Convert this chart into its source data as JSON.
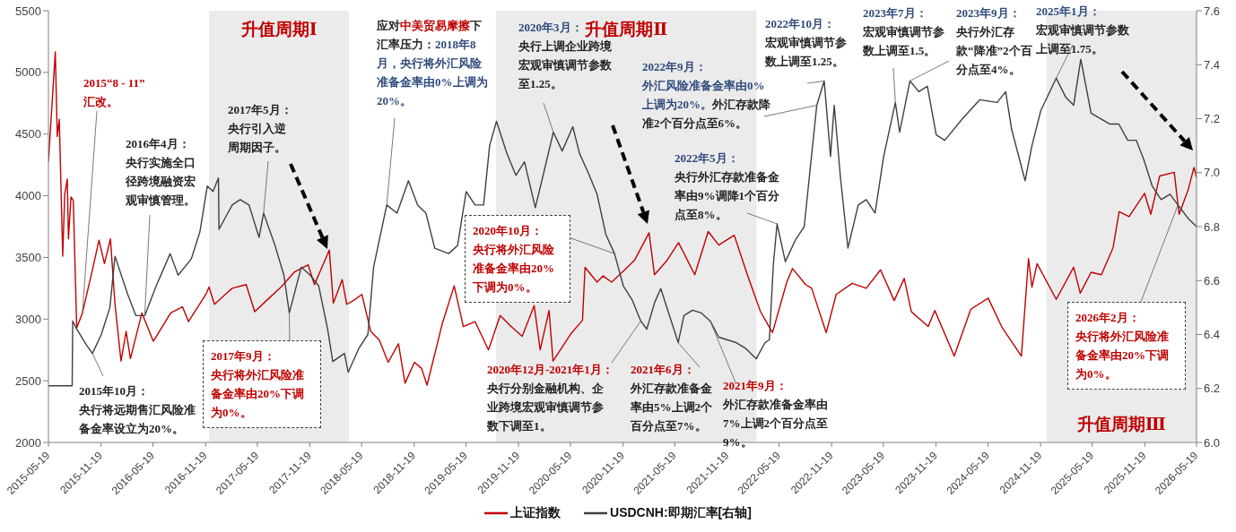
{
  "chart_data": {
    "type": "line",
    "xlim": [
      "2015-05-19",
      "2026-05-19"
    ],
    "xticks": [
      "2015-05-19",
      "2015-11-19",
      "2016-05-19",
      "2016-11-19",
      "2017-05-19",
      "2017-11-19",
      "2018-05-19",
      "2018-11-19",
      "2019-05-19",
      "2019-11-19",
      "2020-05-19",
      "2020-11-19",
      "2021-05-19",
      "2021-11-19",
      "2022-05-19",
      "2022-11-19",
      "2023-05-19",
      "2023-11-19",
      "2024-05-19",
      "2024-11-19",
      "2025-05-19",
      "2025-11-19",
      "2026-05-19"
    ],
    "ylim": [
      2000,
      5500
    ],
    "yticks": [
      2000,
      2500,
      3000,
      3500,
      4000,
      4500,
      5000,
      5500
    ],
    "y2lim": [
      6.0,
      7.6
    ],
    "y2ticks": [
      {
        "value": 6.0,
        "label": "6.0"
      },
      {
        "value": 6.2,
        "label": "6.2"
      },
      {
        "value": 6.4,
        "label": "6.4"
      },
      {
        "value": 6.6,
        "label": "6.6"
      },
      {
        "value": 6.8,
        "label": "6.8"
      },
      {
        "value": 7.0,
        "label": "7.0"
      },
      {
        "value": 7.2,
        "label": "7.2"
      },
      {
        "value": 7.4,
        "label": "7.4"
      },
      {
        "value": 7.6,
        "label": "7.6"
      }
    ],
    "legend": "bottom",
    "bands": [
      {
        "axis": "x",
        "from": "2016-12-01",
        "to": "2018-04-05",
        "label": "升值周期Ⅰ",
        "color": "#ebebeb"
      },
      {
        "axis": "x",
        "from": "2019-09-01",
        "to": "2022-03-01",
        "label": "升值周期Ⅱ",
        "color": "#ebebeb"
      },
      {
        "axis": "x",
        "from": "2024-12-10",
        "to": "2026-05-19",
        "label": "升值周期Ⅲ",
        "color": "#ebebeb"
      }
    ],
    "series": [
      {
        "name": "上证指数",
        "color": "#c00000",
        "x": [
          "2015-05-19",
          "2015-06-12",
          "2015-06-19",
          "2015-06-26",
          "2015-07-08",
          "2015-07-15",
          "2015-07-24",
          "2015-07-28",
          "2015-08-06",
          "2015-08-14",
          "2015-08-26",
          "2015-09-15",
          "2015-10-20",
          "2015-11-12",
          "2015-12-01",
          "2015-12-22",
          "2016-01-07",
          "2016-01-28",
          "2016-02-15",
          "2016-03-01",
          "2016-04-10",
          "2016-05-20",
          "2016-07-20",
          "2016-08-30",
          "2016-09-20",
          "2016-11-20",
          "2016-12-01",
          "2016-12-20",
          "2017-02-20",
          "2017-04-10",
          "2017-05-10",
          "2017-06-20",
          "2017-08-10",
          "2017-09-25",
          "2017-11-13",
          "2017-12-05",
          "2018-01-26",
          "2018-02-09",
          "2018-03-12",
          "2018-03-28",
          "2018-04-20",
          "2018-05-20",
          "2018-06-20",
          "2018-07-20",
          "2018-08-20",
          "2018-09-25",
          "2018-10-18",
          "2018-11-20",
          "2018-12-15",
          "2019-01-03",
          "2019-02-25",
          "2019-04-08",
          "2019-05-10",
          "2019-06-20",
          "2019-08-06",
          "2019-09-16",
          "2019-10-20",
          "2019-12-02",
          "2020-01-13",
          "2020-02-03",
          "2020-03-05",
          "2020-03-19",
          "2020-05-20",
          "2020-06-30",
          "2020-07-09",
          "2020-08-20",
          "2020-09-10",
          "2020-10-10",
          "2020-11-25",
          "2020-12-30",
          "2021-02-18",
          "2021-03-09",
          "2021-04-20",
          "2021-06-01",
          "2021-07-28",
          "2021-09-13",
          "2021-10-20",
          "2021-12-13",
          "2022-01-28",
          "2022-03-15",
          "2022-04-26",
          "2022-06-15",
          "2022-07-05",
          "2022-08-20",
          "2022-09-10",
          "2022-10-31",
          "2022-12-05",
          "2023-01-30",
          "2023-03-20",
          "2023-05-09",
          "2023-06-26",
          "2023-07-31",
          "2023-08-25",
          "2023-10-23",
          "2023-11-15",
          "2024-01-22",
          "2024-03-20",
          "2024-05-20",
          "2024-07-08",
          "2024-09-13",
          "2024-10-08",
          "2024-10-20",
          "2024-11-07",
          "2025-01-13",
          "2025-03-15",
          "2025-04-07",
          "2025-05-15",
          "2025-06-20",
          "2025-07-31",
          "2025-08-21",
          "2025-09-25",
          "2025-11-18",
          "2025-12-10",
          "2026-01-10",
          "2026-03-02",
          "2026-03-19",
          "2026-04-20",
          "2026-05-10",
          "2026-05-19"
        ],
        "values": [
          4280,
          5166,
          4480,
          4620,
          3510,
          4010,
          4135,
          3650,
          3990,
          3960,
          2930,
          3050,
          3400,
          3640,
          3450,
          3650,
          3120,
          2660,
          2900,
          2680,
          3050,
          2820,
          3050,
          3100,
          2980,
          3200,
          3260,
          3120,
          3250,
          3280,
          3060,
          3150,
          3260,
          3380,
          3440,
          3280,
          3560,
          3130,
          3320,
          3120,
          3150,
          3200,
          2900,
          2830,
          2650,
          2800,
          2480,
          2650,
          2600,
          2465,
          2960,
          3270,
          2940,
          2980,
          2750,
          3030,
          2950,
          2860,
          3110,
          2750,
          3070,
          2660,
          2880,
          2990,
          3420,
          3300,
          3350,
          3300,
          3400,
          3480,
          3700,
          3360,
          3470,
          3620,
          3360,
          3710,
          3600,
          3680,
          3360,
          3060,
          2890,
          3300,
          3410,
          3280,
          3250,
          2890,
          3200,
          3290,
          3250,
          3400,
          3150,
          3330,
          3060,
          2940,
          3070,
          2700,
          3080,
          3170,
          2930,
          2700,
          3490,
          3260,
          3450,
          3160,
          3420,
          3210,
          3380,
          3360,
          3580,
          3870,
          3830,
          4020,
          3850,
          4160,
          4190,
          3850,
          4050,
          4230,
          4150
        ]
      },
      {
        "name": "USDCNH:即期汇率[右轴]",
        "color": "#404040",
        "axis": "y2",
        "x": [
          "2015-05-19",
          "2015-08-10",
          "2015-08-12",
          "2015-08-26",
          "2015-09-30",
          "2015-10-20",
          "2015-11-20",
          "2015-12-20",
          "2016-01-07",
          "2016-02-20",
          "2016-03-20",
          "2016-04-20",
          "2016-05-30",
          "2016-07-18",
          "2016-08-15",
          "2016-09-30",
          "2016-10-30",
          "2016-11-25",
          "2016-12-15",
          "2017-01-03",
          "2017-01-05",
          "2017-02-20",
          "2017-03-20",
          "2017-04-20",
          "2017-05-25",
          "2017-06-10",
          "2017-07-20",
          "2017-08-20",
          "2017-09-08",
          "2017-10-20",
          "2017-11-20",
          "2017-12-20",
          "2018-01-20",
          "2018-02-07",
          "2018-03-20",
          "2018-04-02",
          "2018-05-10",
          "2018-06-10",
          "2018-06-30",
          "2018-08-15",
          "2018-09-20",
          "2018-10-30",
          "2018-12-01",
          "2018-12-30",
          "2019-01-30",
          "2019-03-20",
          "2019-04-20",
          "2019-05-20",
          "2019-06-20",
          "2019-07-20",
          "2019-08-10",
          "2019-09-03",
          "2019-10-10",
          "2019-11-10",
          "2019-12-10",
          "2020-01-17",
          "2020-02-20",
          "2020-03-20",
          "2020-04-20",
          "2020-05-27",
          "2020-06-20",
          "2020-07-20",
          "2020-08-20",
          "2020-09-20",
          "2020-10-20",
          "2020-11-20",
          "2020-12-20",
          "2021-01-20",
          "2021-02-10",
          "2021-03-10",
          "2021-03-31",
          "2021-05-31",
          "2021-06-20",
          "2021-07-20",
          "2021-08-20",
          "2021-09-20",
          "2021-10-20",
          "2021-12-20",
          "2022-01-20",
          "2022-02-28",
          "2022-03-31",
          "2022-04-15",
          "2022-04-29",
          "2022-05-12",
          "2022-06-10",
          "2022-07-15",
          "2022-08-15",
          "2022-09-28",
          "2022-10-24",
          "2022-11-15",
          "2022-11-28",
          "2022-12-20",
          "2023-01-15",
          "2023-02-20",
          "2023-03-20",
          "2023-04-20",
          "2023-05-20",
          "2023-06-30",
          "2023-07-15",
          "2023-08-20",
          "2023-09-20",
          "2023-10-20",
          "2023-11-20",
          "2023-12-20",
          "2024-02-20",
          "2024-04-20",
          "2024-06-20",
          "2024-07-20",
          "2024-08-10",
          "2024-09-26",
          "2024-10-20",
          "2024-11-20",
          "2025-01-13",
          "2025-02-15",
          "2025-03-15",
          "2025-04-09",
          "2025-05-15",
          "2025-07-20",
          "2025-08-20",
          "2025-09-20",
          "2025-10-20",
          "2025-11-15",
          "2025-12-15",
          "2026-01-15",
          "2026-02-15",
          "2026-03-15",
          "2026-04-20",
          "2026-05-19"
        ],
        "values": [
          6.21,
          6.21,
          6.45,
          6.42,
          6.36,
          6.33,
          6.4,
          6.5,
          6.69,
          6.55,
          6.47,
          6.47,
          6.58,
          6.7,
          6.62,
          6.68,
          6.78,
          6.95,
          6.93,
          6.98,
          6.79,
          6.88,
          6.9,
          6.88,
          6.76,
          6.85,
          6.73,
          6.62,
          6.48,
          6.65,
          6.62,
          6.58,
          6.42,
          6.3,
          6.33,
          6.26,
          6.35,
          6.4,
          6.65,
          6.88,
          6.85,
          6.97,
          6.88,
          6.85,
          6.72,
          6.7,
          6.73,
          6.93,
          6.88,
          6.88,
          7.1,
          7.19,
          7.07,
          6.99,
          7.04,
          6.87,
          7.02,
          7.15,
          7.08,
          7.17,
          7.07,
          7.0,
          6.92,
          6.77,
          6.7,
          6.58,
          6.53,
          6.45,
          6.42,
          6.52,
          6.57,
          6.37,
          6.47,
          6.49,
          6.48,
          6.45,
          6.39,
          6.37,
          6.35,
          6.31,
          6.37,
          6.38,
          6.66,
          6.81,
          6.67,
          6.75,
          6.8,
          7.25,
          7.34,
          7.06,
          7.25,
          6.98,
          6.72,
          6.88,
          6.9,
          6.85,
          7.06,
          7.26,
          7.15,
          7.34,
          7.3,
          7.32,
          7.14,
          7.12,
          7.2,
          7.27,
          7.26,
          7.3,
          7.16,
          6.97,
          7.1,
          7.23,
          7.35,
          7.28,
          7.25,
          7.42,
          7.22,
          7.18,
          7.18,
          7.12,
          7.12,
          7.05,
          6.95,
          6.9,
          6.92,
          6.88,
          6.83,
          6.8
        ]
      }
    ],
    "annotations": [
      "2015“8 - 11”",
      {
        "text": "汇改。",
        "x": "2015-09-15",
        "y": 3050
      },
      "2016年4月：",
      {
        "text": "央行实施全口径跨境融资宏观审慎管理。",
        "x": "2016-04-20",
        "y": 3028
      },
      "2017年5月：",
      {
        "text": "央行引入逆周期因子。",
        "x": "2017-06-10",
        "y": 3859
      },
      "应对",
      "中美贸易摩擦",
      "下汇率压力：",
      {
        "text": "2018年8月，央行将外汇风险准备金率由0%上调为20%。",
        "x": "2018-08-15",
        "y": 3925
      },
      "2020年3月：",
      {
        "text": "央行上调企业跨境宏观审慎调节参数至1.25。",
        "x": "2020-03-20",
        "y": 4516
      },
      {
        "text": "2020年10月：",
        "x": "2020-10-20",
        "y": 3531
      },
      "央行将外汇风险准备金率由20%下调为0%。",
      {
        "text": "2017年9月：",
        "x": "2017-09-08",
        "y": 3050
      },
      "央行将外汇风险准备金率由20%下调为0%。",
      {
        "text": "2015年10月：",
        "x": "2015-10-20",
        "y": 2722
      },
      "央行将远期售汇风险准备金率设立为20%。",
      {
        "text": "2020年12月-2021年1月：",
        "x": "2021-01-20",
        "y": 2984
      },
      "央行分别金融机构、企业跨境宏观审慎调节参数下调至1。",
      "2021年6月：",
      {
        "text": "外汇存款准备金率由5%上调2个百分点至7%。",
        "x": "2021-05-31",
        "y": 2809
      },
      {
        "text": "2021年9月：",
        "x": "2021-09-20",
        "y": 2984
      },
      "外汇存款准备金率由7%上调2个百分点至9%。",
      "2022年9月：",
      "外汇风险准备金率由0%上调为20%。",
      {
        "text": "外汇存款降准2个百分点至6%。",
        "x": "2022-09-28",
        "y": 4734
      },
      "2022年5月：",
      {
        "text": "央行外汇存款准备金率由9%调降1个百分点至8%。",
        "x": "2022-05-12",
        "y": 3772
      },
      "2022年10月：",
      {
        "text": "宏观审慎调节参数上调至1.25。",
        "x": "2022-10-24",
        "y": 4931
      },
      "2023年7月：",
      {
        "text": "宏观审慎调节参数上调至1.5。",
        "x": "2023-06-30",
        "y": 4756
      },
      "2023年9月：",
      {
        "text": "央行外汇存款“降准”2个百分点至4%。",
        "x": "2023-08-20",
        "y": 4931
      },
      "2025年1月：",
      {
        "text": "宏观审慎调节参数上调至1.75。",
        "x": "2025-01-13",
        "y": 4953
      },
      {
        "text": "2026年2月：",
        "x": "2026-03-15",
        "y": 3925
      },
      "央行将外汇风险准备金率由20%下调为0%。"
    ]
  }
}
